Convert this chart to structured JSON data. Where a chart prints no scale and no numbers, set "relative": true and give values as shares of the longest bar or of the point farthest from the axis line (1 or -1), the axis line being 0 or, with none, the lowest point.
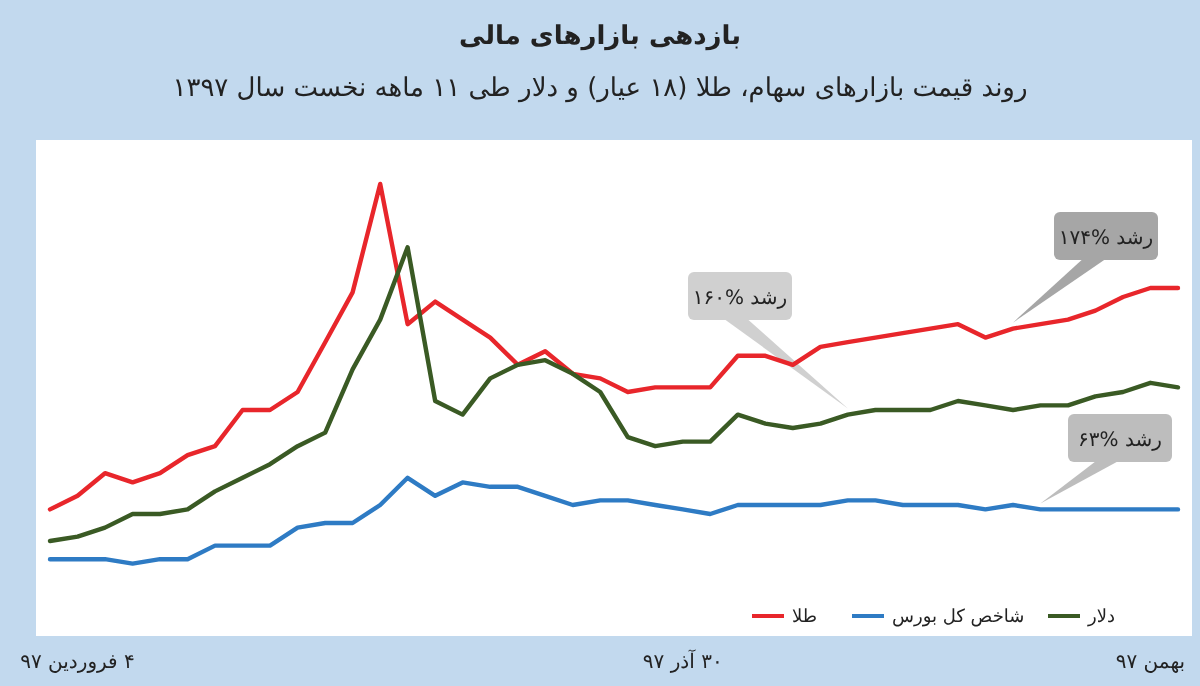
{
  "chart_data": {
    "type": "line",
    "title": "بازدهی بازارهای مالی",
    "subtitle": "روند قیمت بازارهای سهام، طلا (۱۸ عیار) و دلار طی ۱۱ ماهه نخست سال ۱۳۹۷",
    "relative": true,
    "legend": "bottom right",
    "marker": "none",
    "line_style": "solid",
    "categories": [
      null,
      "۴ فروردین ۹۷",
      null,
      null,
      null,
      null,
      null,
      null,
      null,
      null,
      null,
      null,
      null,
      null,
      null,
      null,
      null,
      null,
      null,
      null,
      null,
      null,
      null,
      "۳۰ آذر ۹۷",
      null,
      null,
      null,
      null,
      null,
      null,
      null,
      null,
      null,
      null,
      null,
      null,
      null,
      null,
      null,
      null,
      "بهمن ۹۷",
      null
    ],
    "series": [
      {
        "name": "طلا",
        "color": "#e8262b",
        "values": [
          0.28,
          0.31,
          0.36,
          0.34,
          0.36,
          0.4,
          0.42,
          0.5,
          0.5,
          0.54,
          0.65,
          0.76,
          1,
          0.69,
          0.74,
          0.7,
          0.66,
          0.6,
          0.63,
          0.58,
          0.57,
          0.54,
          0.55,
          0.55,
          0.55,
          0.62,
          0.62,
          0.6,
          0.64,
          0.65,
          0.66,
          0.67,
          0.68,
          0.69,
          0.66,
          0.68,
          0.69,
          0.7,
          0.72,
          0.75,
          0.77,
          0.77
        ]
      },
      {
        "name": "شاخص کل بورس",
        "color": "#2e7bc4",
        "values": [
          0.17,
          0.17,
          0.17,
          0.16,
          0.17,
          0.17,
          0.2,
          0.2,
          0.2,
          0.24,
          0.25,
          0.25,
          0.29,
          0.35,
          0.31,
          0.34,
          0.33,
          0.33,
          0.31,
          0.29,
          0.3,
          0.3,
          0.29,
          0.28,
          0.27,
          0.29,
          0.29,
          0.29,
          0.29,
          0.3,
          0.3,
          0.29,
          0.29,
          0.29,
          0.28,
          0.29,
          0.28,
          0.28,
          0.28,
          0.28,
          0.28,
          0.28
        ]
      },
      {
        "name": "دلار",
        "color": "#3a5a24",
        "values": [
          0.21,
          0.22,
          0.24,
          0.27,
          0.27,
          0.28,
          0.32,
          0.35,
          0.38,
          0.42,
          0.45,
          0.59,
          0.7,
          0.86,
          0.52,
          0.49,
          0.57,
          0.6,
          0.61,
          0.58,
          0.54,
          0.44,
          0.42,
          0.43,
          0.43,
          0.49,
          0.47,
          0.46,
          0.47,
          0.49,
          0.5,
          0.5,
          0.5,
          0.52,
          0.51,
          0.5,
          0.51,
          0.51,
          0.53,
          0.54,
          0.56,
          0.55
        ]
      }
    ],
    "annotations": [
      "رشد %۱۷۴",
      "رشد %۱۶۰",
      "رشد %۶۳"
    ]
  }
}
